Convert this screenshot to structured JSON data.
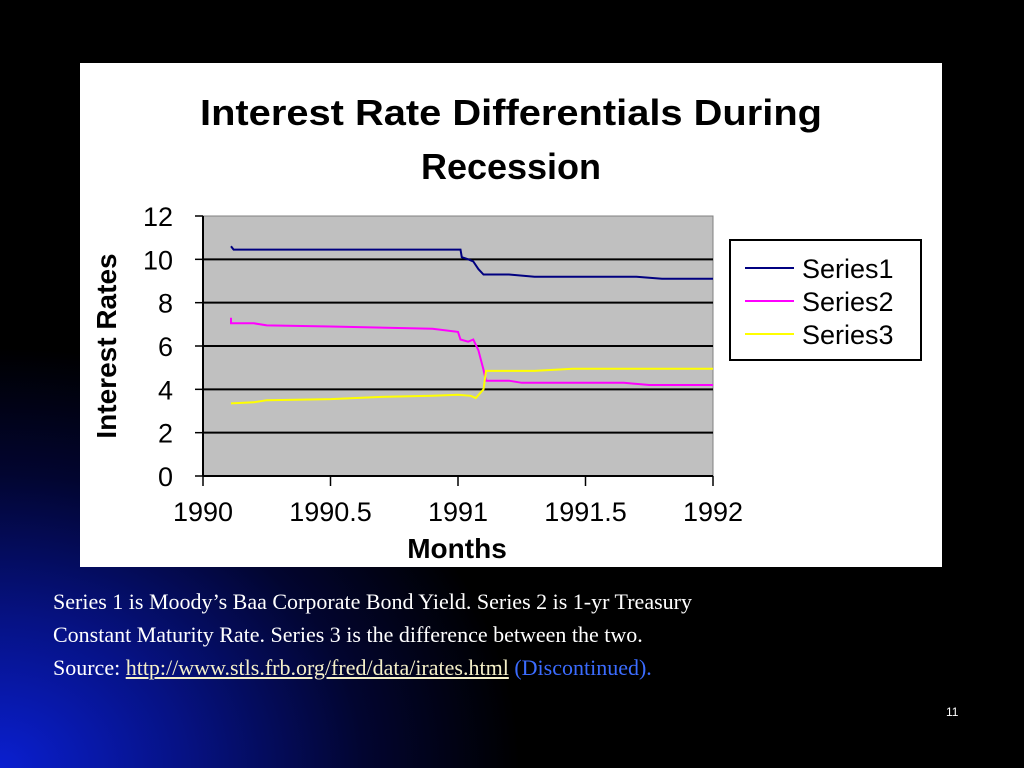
{
  "chart_data": {
    "type": "line",
    "title": "Interest Rate Differentials During Recession",
    "xlabel": "Months",
    "ylabel": "Interest Rates",
    "xlim": [
      1990,
      1992
    ],
    "ylim": [
      0,
      12
    ],
    "xticks": [
      "1990",
      "1990.5",
      "1991",
      "1991.5",
      "1992"
    ],
    "yticks": [
      "0",
      "2",
      "4",
      "6",
      "8",
      "10",
      "12"
    ],
    "grid": true,
    "legend_position": "right",
    "series": [
      {
        "name": "Series1",
        "color": "#000080",
        "points": [
          [
            1990.11,
            10.6
          ],
          [
            1990.12,
            10.45
          ],
          [
            1990.5,
            10.45
          ],
          [
            1991.0,
            10.45
          ],
          [
            1991.01,
            10.45
          ],
          [
            1991.015,
            10.1
          ],
          [
            1991.04,
            10.0
          ],
          [
            1991.06,
            9.9
          ],
          [
            1991.08,
            9.55
          ],
          [
            1991.1,
            9.3
          ],
          [
            1991.2,
            9.3
          ],
          [
            1991.3,
            9.2
          ],
          [
            1991.7,
            9.2
          ],
          [
            1991.8,
            9.1
          ],
          [
            1992.0,
            9.1
          ]
        ]
      },
      {
        "name": "Series2",
        "color": "#ff00ff",
        "points": [
          [
            1990.11,
            7.3
          ],
          [
            1990.11,
            7.05
          ],
          [
            1990.2,
            7.05
          ],
          [
            1990.25,
            6.95
          ],
          [
            1990.5,
            6.9
          ],
          [
            1990.9,
            6.8
          ],
          [
            1991.0,
            6.65
          ],
          [
            1991.01,
            6.3
          ],
          [
            1991.04,
            6.2
          ],
          [
            1991.06,
            6.3
          ],
          [
            1991.08,
            5.8
          ],
          [
            1991.1,
            4.9
          ],
          [
            1991.11,
            4.4
          ],
          [
            1991.2,
            4.4
          ],
          [
            1991.25,
            4.3
          ],
          [
            1991.65,
            4.3
          ],
          [
            1991.75,
            4.2
          ],
          [
            1992.0,
            4.2
          ]
        ]
      },
      {
        "name": "Series3",
        "color": "#ffff00",
        "points": [
          [
            1990.11,
            3.35
          ],
          [
            1990.2,
            3.4
          ],
          [
            1990.25,
            3.5
          ],
          [
            1990.5,
            3.55
          ],
          [
            1990.7,
            3.65
          ],
          [
            1990.9,
            3.7
          ],
          [
            1991.0,
            3.75
          ],
          [
            1991.05,
            3.7
          ],
          [
            1991.07,
            3.6
          ],
          [
            1991.1,
            4.0
          ],
          [
            1991.11,
            4.85
          ],
          [
            1991.3,
            4.85
          ],
          [
            1991.45,
            4.95
          ],
          [
            1992.0,
            4.95
          ]
        ]
      }
    ]
  },
  "caption": {
    "line1": "Series 1 is Moody’s Baa Corporate Bond Yield.  Series 2 is 1-yr Treasury",
    "line2": "Constant Maturity Rate.  Series 3 is the difference between the two.",
    "source_label": "Source: ",
    "source_link": "http://www.stls.frb.org/fred/data/irates.html",
    "discontinued": " (Discontinued)."
  },
  "page_number": "11"
}
